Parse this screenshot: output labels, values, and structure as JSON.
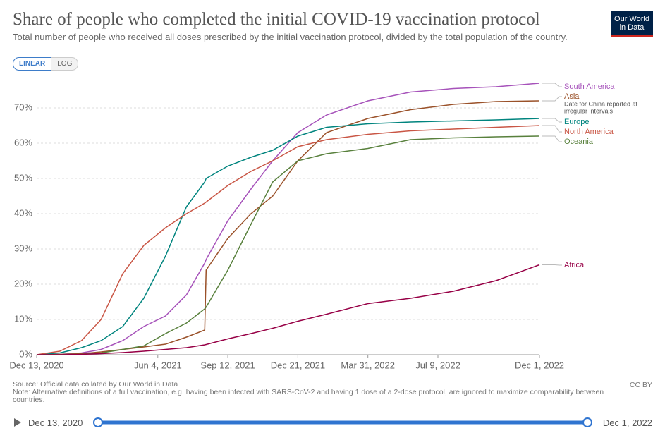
{
  "chart_data": {
    "type": "line",
    "title": "Share of people who completed the initial COVID-19 vaccination protocol",
    "subtitle": "Total number of people who received all doses prescribed by the initial vaccination protocol, divided by the total population of the country.",
    "scale_buttons": [
      "LINEAR",
      "LOG"
    ],
    "logo": [
      "Our World",
      "in Data"
    ],
    "x": [
      "2020-12-13",
      "2021-01-15",
      "2021-02-15",
      "2021-03-15",
      "2021-04-15",
      "2021-05-15",
      "2021-06-15",
      "2021-07-15",
      "2021-08-10",
      "2021-08-12",
      "2021-09-12",
      "2021-10-15",
      "2021-11-15",
      "2021-12-21",
      "2022-01-31",
      "2022-03-31",
      "2022-05-31",
      "2022-07-31",
      "2022-09-30",
      "2022-12-01"
    ],
    "xlim": [
      "2020-12-13",
      "2022-12-01"
    ],
    "xticks": [
      {
        "value": "2020-12-13",
        "label": "Dec 13, 2020"
      },
      {
        "value": "2021-06-04",
        "label": "Jun 4, 2021"
      },
      {
        "value": "2021-09-12",
        "label": "Sep 12, 2021"
      },
      {
        "value": "2021-12-21",
        "label": "Dec 21, 2021"
      },
      {
        "value": "2022-03-31",
        "label": "Mar 31, 2022"
      },
      {
        "value": "2022-07-09",
        "label": "Jul 9, 2022"
      },
      {
        "value": "2022-12-01",
        "label": "Dec 1, 2022"
      }
    ],
    "ylim": [
      0,
      78
    ],
    "yticks": [
      {
        "value": 0,
        "label": "0%"
      },
      {
        "value": 10,
        "label": "10%"
      },
      {
        "value": 20,
        "label": "20%"
      },
      {
        "value": 30,
        "label": "30%"
      },
      {
        "value": 40,
        "label": "40%"
      },
      {
        "value": 50,
        "label": "50%"
      },
      {
        "value": 60,
        "label": "60%"
      },
      {
        "value": 70,
        "label": "70%"
      }
    ],
    "grid": true,
    "series": [
      {
        "name": "South America",
        "color": "#a652ba",
        "values": [
          0,
          0.1,
          0.5,
          1.5,
          4,
          8,
          11,
          17,
          26,
          27,
          38,
          47,
          55,
          63,
          68,
          72,
          74.5,
          75.5,
          76,
          77
        ]
      },
      {
        "name": "Asia",
        "color": "#9a5129",
        "annotation": [
          "Date for China reported at",
          "irregular intervals"
        ],
        "values": [
          0,
          0.1,
          0.3,
          0.8,
          1.5,
          2.2,
          3,
          5,
          7,
          24,
          33,
          40,
          45,
          55,
          63,
          67,
          69.5,
          71,
          71.8,
          72
        ]
      },
      {
        "name": "Europe",
        "color": "#00847e",
        "values": [
          0,
          0.5,
          2,
          4,
          8,
          16,
          28,
          42,
          49,
          50,
          53.5,
          56,
          58,
          62,
          64.5,
          65.5,
          66,
          66.3,
          66.6,
          67
        ]
      },
      {
        "name": "North America",
        "color": "#c95645",
        "values": [
          0,
          1,
          4,
          10,
          23,
          31,
          36,
          40,
          43,
          43.3,
          48,
          52,
          55,
          59,
          61,
          62.5,
          63.5,
          64,
          64.5,
          65
        ]
      },
      {
        "name": "Oceania",
        "color": "#58803c",
        "values": [
          0,
          0,
          0.1,
          0.5,
          1.5,
          2.5,
          6,
          9,
          13,
          13.5,
          24,
          37,
          49,
          55,
          57,
          58.5,
          61,
          61.5,
          61.8,
          62
        ]
      },
      {
        "name": "Africa",
        "color": "#970046",
        "values": [
          0,
          0,
          0.1,
          0.3,
          0.6,
          1,
          1.5,
          2,
          2.8,
          2.9,
          4.5,
          6,
          7.5,
          9.5,
          11.5,
          14.5,
          16,
          18,
          21,
          25.5
        ]
      }
    ],
    "source": "Source: Official data collated by Our World in Data",
    "note": "Note: Alternative definitions of a full vaccination, e.g. having been infected with SARS-CoV-2 and having 1 dose of a 2-dose protocol, are ignored to maximize comparability between countries.",
    "license": "CC BY",
    "timeline": {
      "start": "Dec 13, 2020",
      "end": "Dec 1, 2022"
    }
  }
}
